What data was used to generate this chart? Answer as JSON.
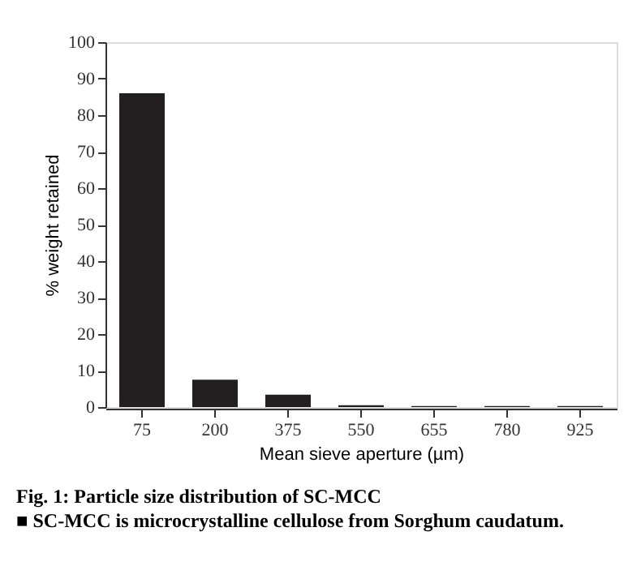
{
  "chart_data": {
    "type": "bar",
    "title": "Fig. 1: Particle size distribution of SC-MCC",
    "xlabel": "Mean sieve aperture (µm)",
    "ylabel": "% weight retained",
    "categories": [
      "75",
      "200",
      "375",
      "550",
      "655",
      "780",
      "925"
    ],
    "values": [
      86,
      7.5,
      3.4,
      0.5,
      0.3,
      0.3,
      0.3
    ],
    "color": "#231f20",
    "ylim": [
      0,
      100
    ],
    "yticks": [
      0,
      10,
      20,
      30,
      40,
      50,
      60,
      70,
      80,
      90,
      100
    ],
    "grid": false,
    "annotations": [
      "■ SC-MCC is microcrystalline cellulose from Sorghum caudatum."
    ]
  }
}
